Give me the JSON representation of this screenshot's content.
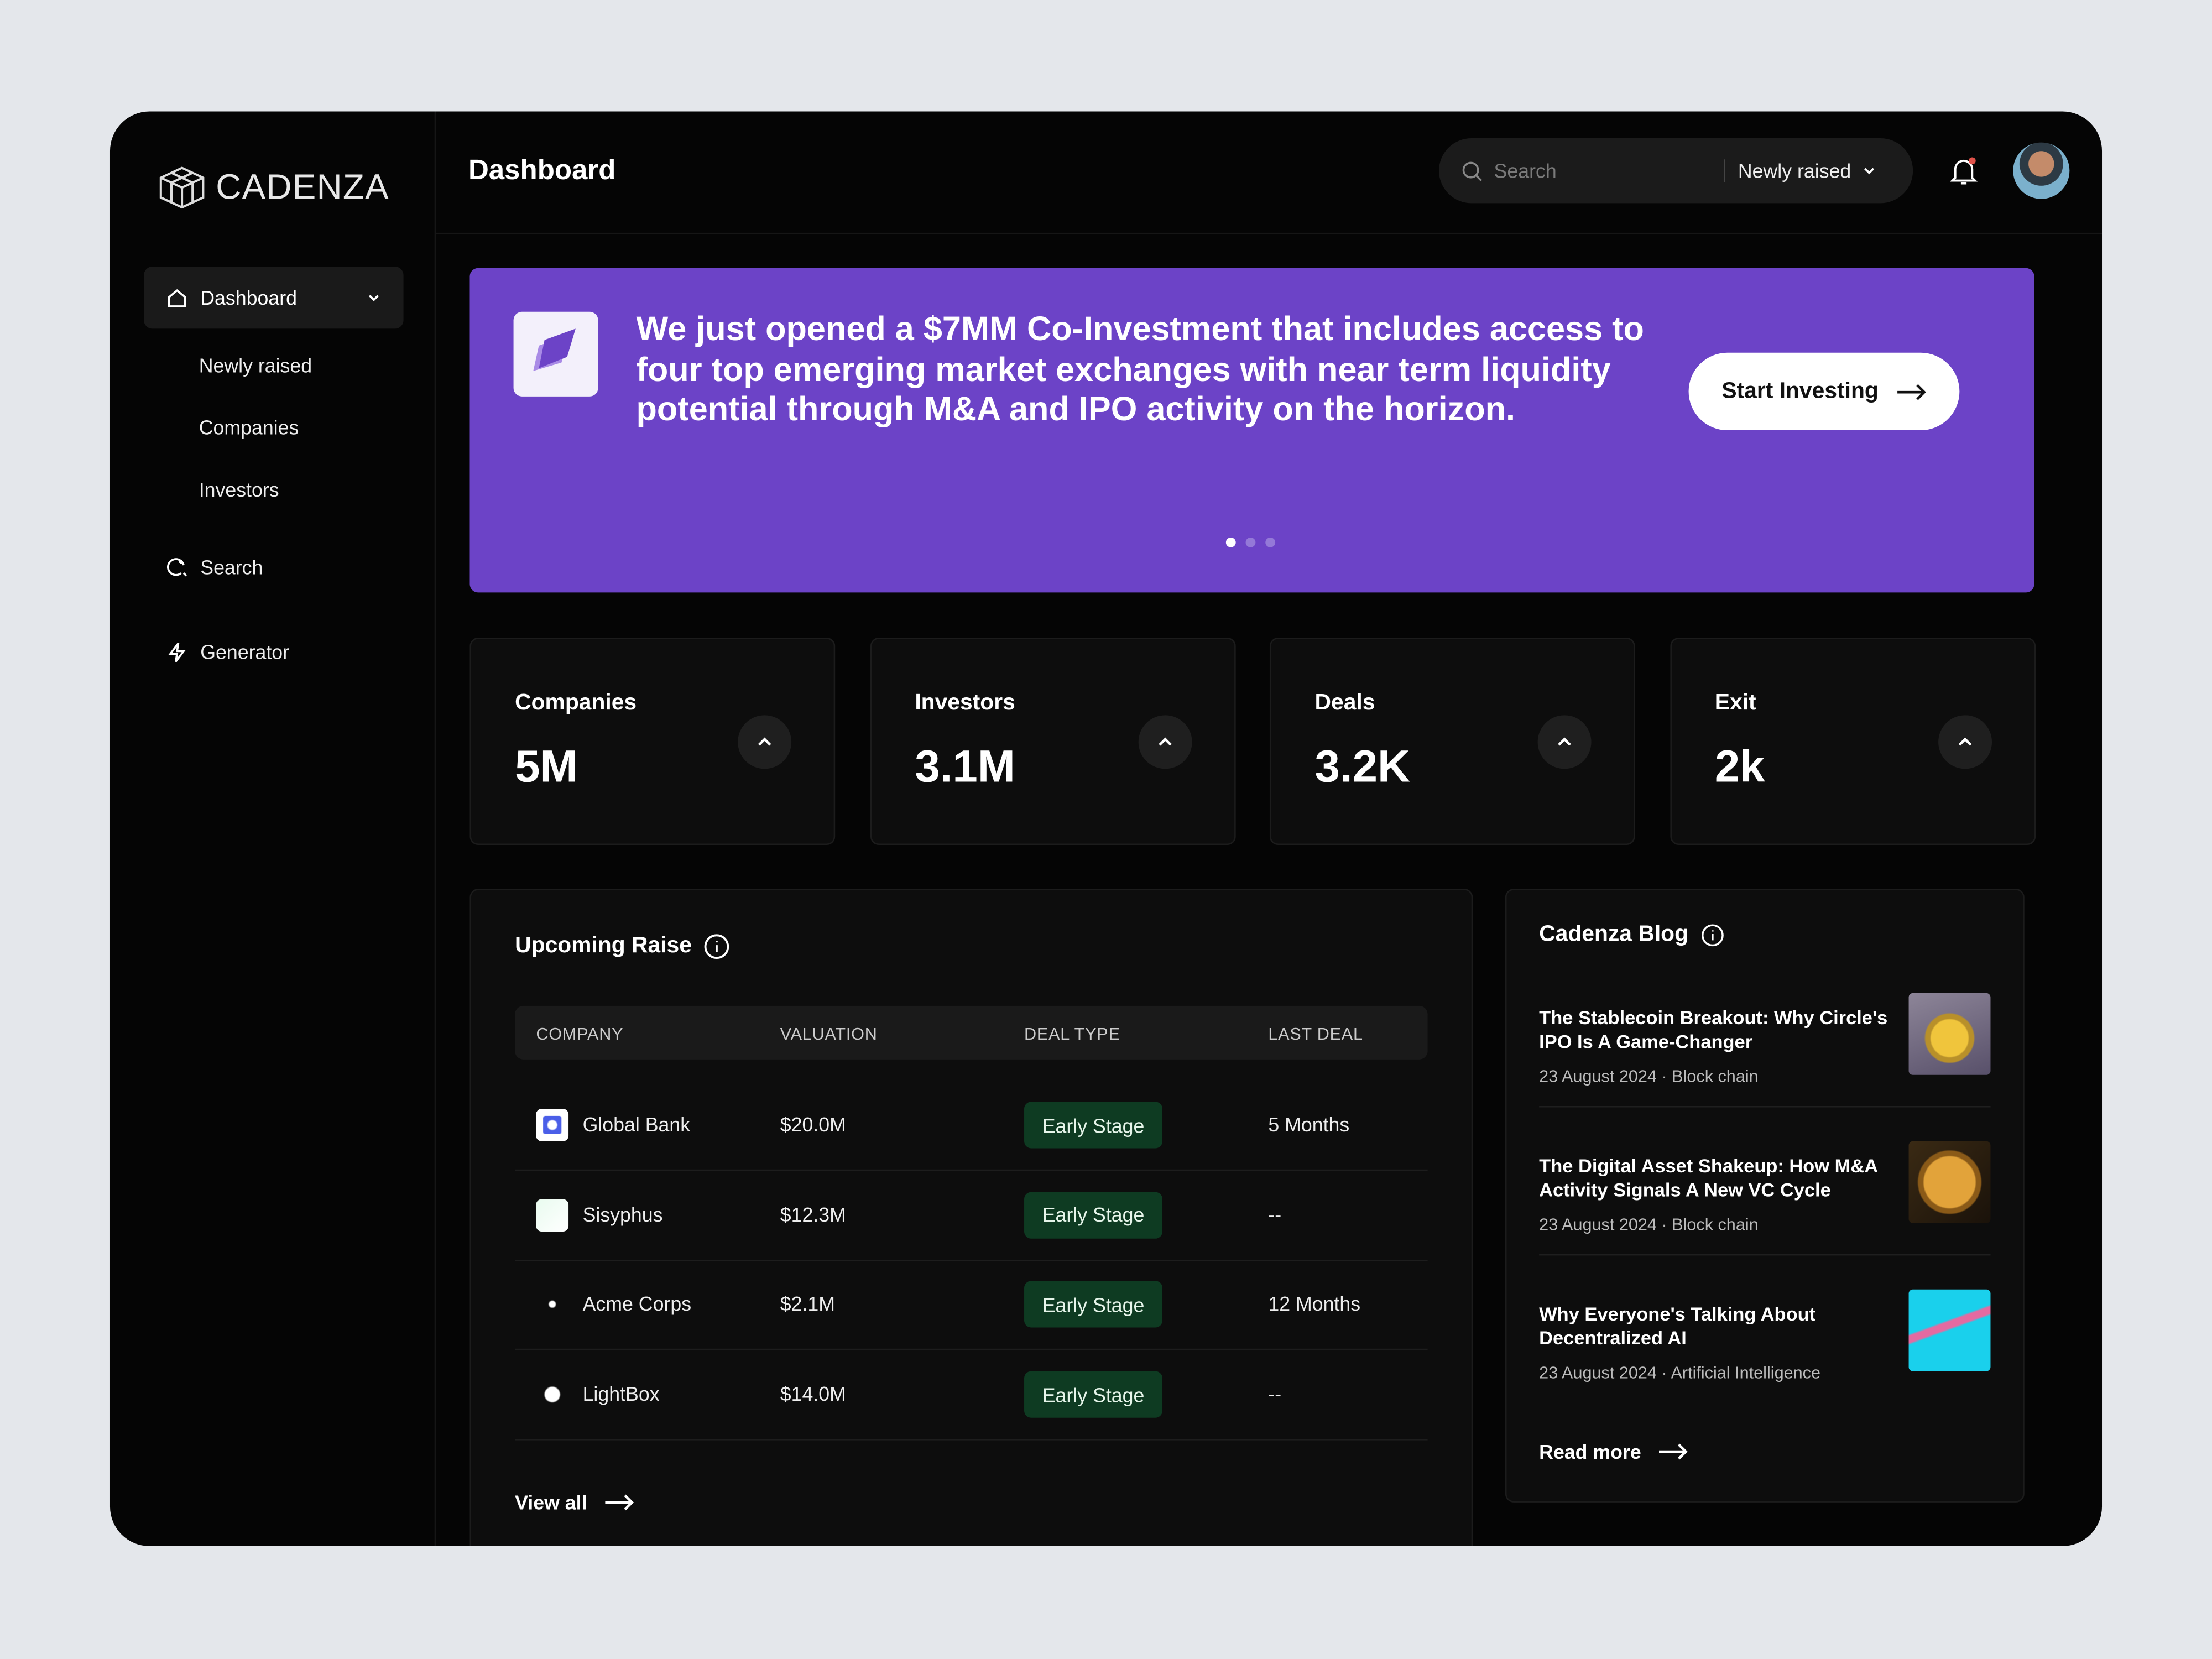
{
  "brand": "CADENZA",
  "header": {
    "title": "Dashboard",
    "search_placeholder": "Search",
    "filter": "Newly raised"
  },
  "sidebar": {
    "dashboard": "Dashboard",
    "sub_items": [
      "Newly raised",
      "Companies",
      "Investors"
    ],
    "items": [
      "Search",
      "Generator"
    ]
  },
  "banner": {
    "text": "We just opened a $7MM Co-Investment that includes access to four top emerging market exchanges with near term liquidity potential through M&A and IPO activity on the horizon.",
    "button": "Start Investing"
  },
  "stats": [
    {
      "label": "Companies",
      "value": "5M"
    },
    {
      "label": "Investors",
      "value": "3.1M"
    },
    {
      "label": "Deals",
      "value": "3.2K"
    },
    {
      "label": "Exit",
      "value": "2k"
    }
  ],
  "table": {
    "title": "Upcoming Raise",
    "columns": [
      "COMPANY",
      "VALUATION",
      "DEAL TYPE",
      "LAST DEAL"
    ],
    "rows": [
      [
        "Global Bank",
        "$20.0M",
        "Early Stage",
        "5 Months"
      ],
      [
        "Sisyphus",
        "$12.3M",
        "Early Stage",
        "--"
      ],
      [
        "Acme Corps",
        "$2.1M",
        "Early Stage",
        "12 Months"
      ],
      [
        "LightBox",
        "$14.0M",
        "Early Stage",
        "--"
      ]
    ],
    "view_all": "View all"
  },
  "blog": {
    "title": "Cadenza Blog",
    "posts": [
      {
        "title": "The Stablecoin Breakout: Why Circle's IPO Is A Game-Changer",
        "meta": "23 August 2024 · Block chain"
      },
      {
        "title": "The Digital Asset Shakeup: How M&A Activity Signals A New VC Cycle",
        "meta": "23 August 2024 · Block chain"
      },
      {
        "title": "Why Everyone's Talking About Decentralized AI",
        "meta": "23 August 2024 · Artificial Intelligence"
      }
    ],
    "read_more": "Read more"
  }
}
